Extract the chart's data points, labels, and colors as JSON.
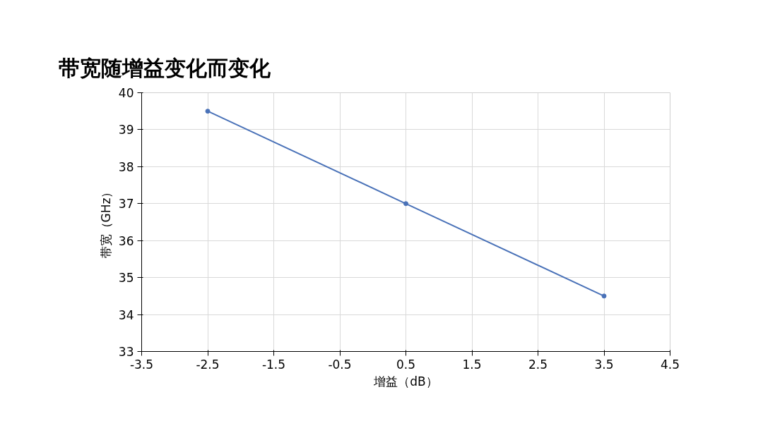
{
  "chart_data": {
    "type": "line",
    "title": "带宽随增益变化而变化",
    "xlabel": "增益（dB）",
    "ylabel": "带宽（GHz）",
    "x": [
      -2.5,
      0.5,
      3.5
    ],
    "series": [
      {
        "color": "#4a72b8",
        "values": [
          39.5,
          37,
          34.5
        ]
      }
    ],
    "xlim": [
      -3.5,
      4.5
    ],
    "xticks": [
      -3.5,
      -2.5,
      -1.5,
      -0.5,
      0.5,
      1.5,
      2.5,
      3.5,
      4.5
    ],
    "ylim": [
      33,
      40
    ],
    "yticks": [
      33,
      34,
      35,
      36,
      37,
      38,
      39,
      40
    ],
    "grid": true,
    "marker": "circle",
    "line_style": "solid"
  }
}
